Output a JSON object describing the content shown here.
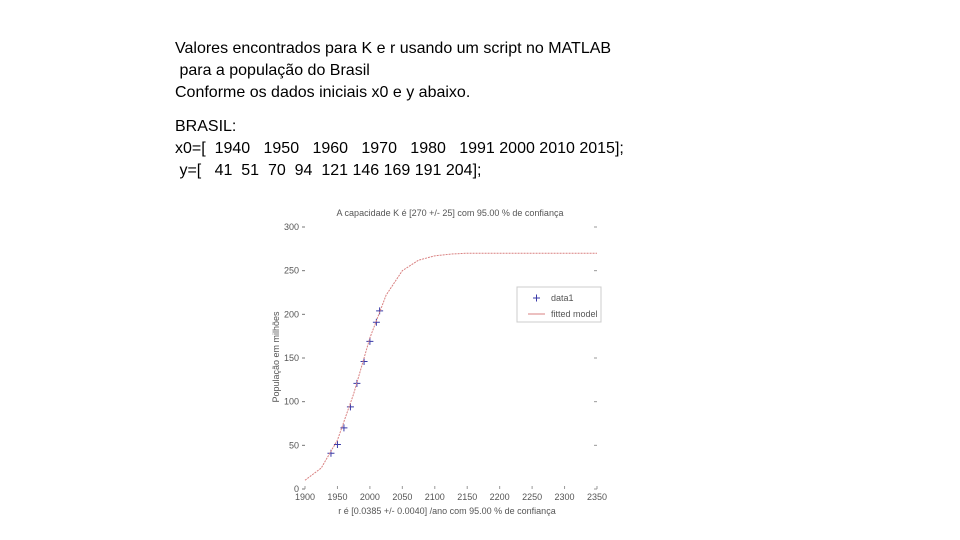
{
  "slide": {
    "intro": [
      "Valores encontrados para K e r usando um script no MATLAB",
      " para a população do Brasil",
      "Conforme os dados iniciais x0 e y abaixo."
    ],
    "data_lines": [
      "BRASIL:",
      "x0=[  1940   1950   1960   1970   1980   1991 2000 2010 2015];",
      " y=[   41  51  70  94  121 146 169 191 204];"
    ]
  },
  "chart_data": {
    "type": "scatter",
    "title": "A capacidade K é [270 +/- 25] com 95.00 % de confiança",
    "x_label": "r é [0.0385 +/- 0.0040] /ano com 95.00 % de confiança",
    "y_label": "População em milhões",
    "xlim": [
      1900,
      2350
    ],
    "xticks": [
      1900,
      1950,
      2000,
      2050,
      2100,
      2150,
      2200,
      2250,
      2300,
      2350
    ],
    "ylim": [
      0,
      300
    ],
    "yticks": [
      0,
      50,
      100,
      150,
      200,
      250,
      300
    ],
    "legend": "right",
    "series": [
      {
        "name": "data1",
        "color": "#3a3aa8",
        "marker": "+",
        "x": [
          1940,
          1950,
          1960,
          1970,
          1980,
          1991,
          2000,
          2010,
          2015
        ],
        "values": [
          41,
          51,
          70,
          94,
          121,
          146,
          169,
          191,
          204
        ]
      },
      {
        "name": "fitted model",
        "color": "#d98080",
        "marker": "none",
        "x": [
          1900,
          1925,
          1950,
          1975,
          2000,
          2025,
          2050,
          2075,
          2100,
          2125,
          2150,
          2200,
          2250,
          2300,
          2350
        ],
        "values": [
          10,
          24,
          56,
          109,
          173,
          222,
          250,
          262,
          267,
          269,
          270,
          270,
          270,
          270,
          270
        ]
      }
    ]
  }
}
